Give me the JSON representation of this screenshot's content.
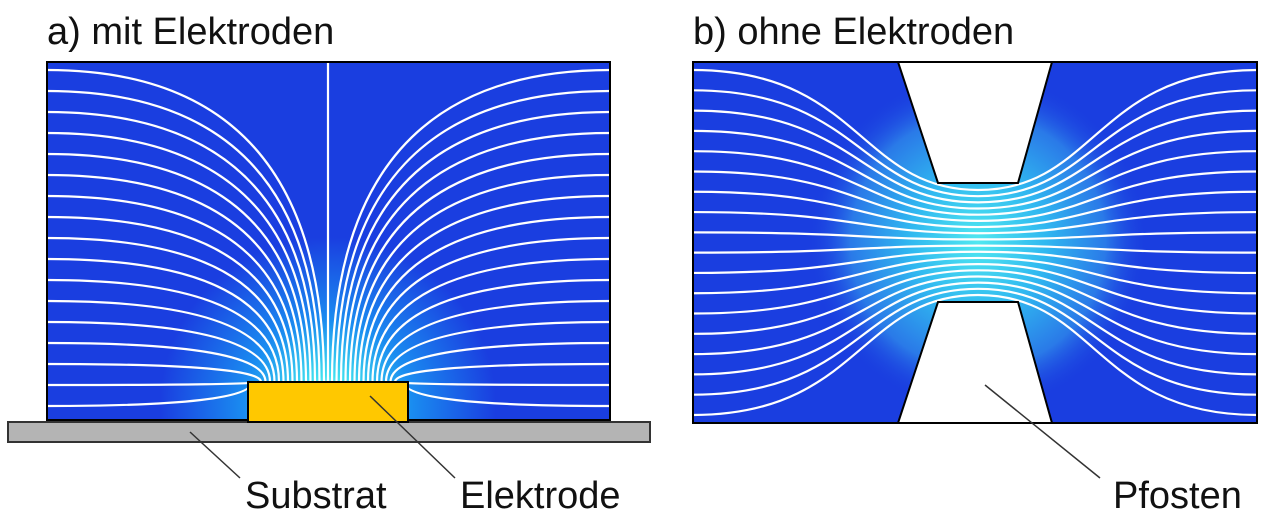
{
  "panels": [
    {
      "title": "a) mit Elektroden",
      "labels": [
        "Substrat",
        "Elektrode"
      ]
    },
    {
      "title": "b) ohne Elektroden",
      "labels": [
        "Pfosten"
      ]
    }
  ]
}
